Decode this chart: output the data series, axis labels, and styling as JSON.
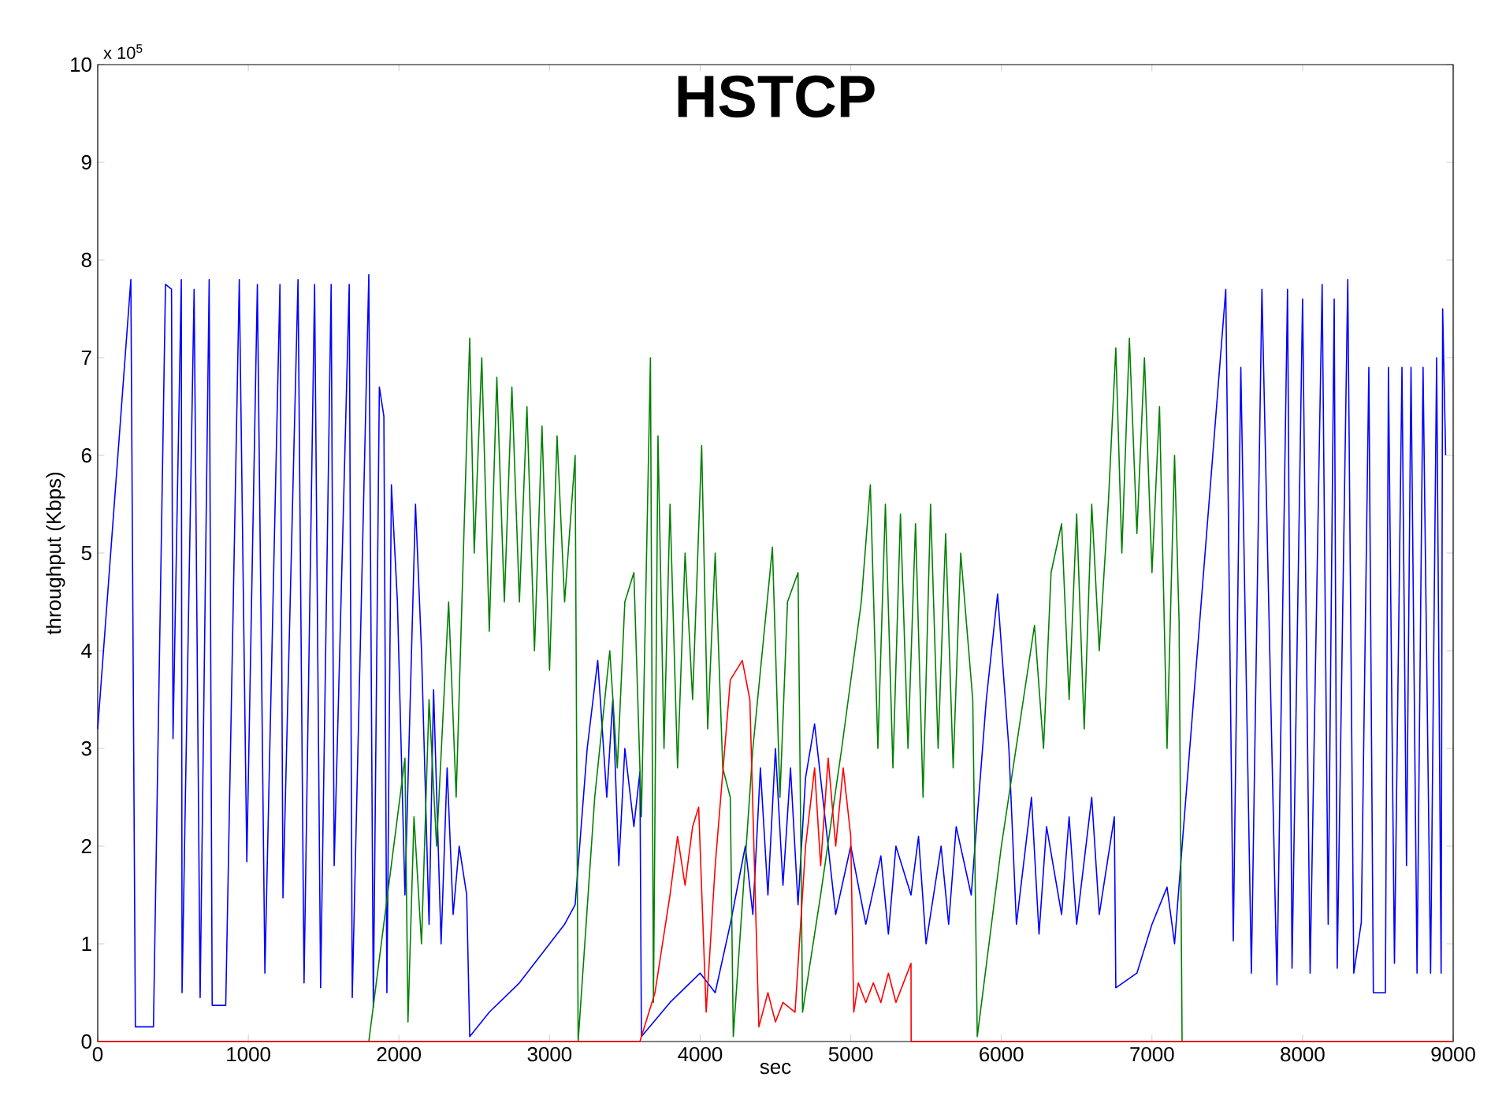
{
  "chart_data": {
    "type": "line",
    "title": "HSTCP",
    "xlabel": "sec",
    "ylabel": "throughput (Kbps)",
    "annotations": [
      "x 10$^{5}$"
    ],
    "xlim": [
      0,
      9000
    ],
    "ylim": [
      0,
      10
    ],
    "xticks": [
      0,
      1000,
      2000,
      3000,
      4000,
      5000,
      6000,
      7000,
      8000,
      9000
    ],
    "yticks": [
      0,
      1,
      2,
      3,
      4,
      5,
      6,
      7,
      8,
      9,
      10
    ],
    "grid": false,
    "series": [
      {
        "color": "#0000ff",
        "x": [
          0,
          220,
          250,
          370,
          450,
          490,
          500,
          555,
          560,
          640,
          680,
          740,
          760,
          850,
          940,
          990,
          1060,
          1110,
          1210,
          1230,
          1330,
          1370,
          1440,
          1480,
          1550,
          1570,
          1670,
          1690,
          1800,
          1830,
          1870,
          1900,
          1920,
          1950,
          1990,
          2040,
          2110,
          2150,
          2200,
          2230,
          2280,
          2320,
          2360,
          2400,
          2450,
          2470,
          2600,
          2800,
          3000,
          3100,
          3170,
          3250,
          3320,
          3380,
          3420,
          3460,
          3500,
          3560,
          3600,
          3610,
          3800,
          4000,
          4100,
          4200,
          4300,
          4350,
          4400,
          4450,
          4500,
          4550,
          4600,
          4650,
          4700,
          4760,
          4850,
          4900,
          5000,
          5100,
          5200,
          5250,
          5300,
          5400,
          5450,
          5500,
          5600,
          5650,
          5700,
          5800,
          5900,
          5975,
          6050,
          6100,
          6200,
          6250,
          6300,
          6400,
          6450,
          6500,
          6600,
          6650,
          6750,
          6760,
          6900,
          7000,
          7100,
          7150,
          7200,
          7490,
          7540,
          7590,
          7660,
          7730,
          7830,
          7900,
          7930,
          8000,
          8050,
          8130,
          8170,
          8210,
          8230,
          8300,
          8340,
          8390,
          8440,
          8470,
          8550,
          8570,
          8610,
          8660,
          8690,
          8720,
          8760,
          8800,
          8850,
          8890,
          8920,
          8930,
          8950
        ],
        "values": [
          3.2,
          7.8,
          0.15,
          0.15,
          7.75,
          7.7,
          3.1,
          7.8,
          0.5,
          7.7,
          0.45,
          7.8,
          0.37,
          0.37,
          7.8,
          1.84,
          7.75,
          0.7,
          7.75,
          1.47,
          7.8,
          0.6,
          7.75,
          0.55,
          7.75,
          1.8,
          7.75,
          0.45,
          7.85,
          0.35,
          6.7,
          6.4,
          0.5,
          5.7,
          4.5,
          1.5,
          5.5,
          4.0,
          1.2,
          3.6,
          1.0,
          2.8,
          1.3,
          2.0,
          1.5,
          0.05,
          0.3,
          0.6,
          1.0,
          1.2,
          1.4,
          3.0,
          3.9,
          2.5,
          3.5,
          1.8,
          3.0,
          2.2,
          2.76,
          0.05,
          0.4,
          0.7,
          0.5,
          1.2,
          2.0,
          1.3,
          2.8,
          1.5,
          3.0,
          1.6,
          2.8,
          1.4,
          2.7,
          3.25,
          2.0,
          1.3,
          2.0,
          1.2,
          1.9,
          1.1,
          2.0,
          1.5,
          2.1,
          1.0,
          2.0,
          1.2,
          2.2,
          1.5,
          3.5,
          4.58,
          3.0,
          1.2,
          2.5,
          1.1,
          2.2,
          1.3,
          2.3,
          1.2,
          2.5,
          1.3,
          2.3,
          0.55,
          0.7,
          1.2,
          1.58,
          1.0,
          2.0,
          7.7,
          1.03,
          6.9,
          0.7,
          7.7,
          0.58,
          7.7,
          0.75,
          7.6,
          0.7,
          7.75,
          1.2,
          7.6,
          0.75,
          7.8,
          0.7,
          1.22,
          6.9,
          0.5,
          0.5,
          6.9,
          0.8,
          6.9,
          1.8,
          6.9,
          0.7,
          6.9,
          0.7,
          7.0,
          0.7,
          7.5,
          6.0
        ]
      },
      {
        "color": "#008000",
        "x": [
          1800,
          2040,
          2060,
          2100,
          2150,
          2200,
          2250,
          2330,
          2380,
          2470,
          2500,
          2550,
          2600,
          2650,
          2700,
          2750,
          2800,
          2850,
          2900,
          2950,
          3000,
          3050,
          3100,
          3170,
          3190,
          3300,
          3400,
          3450,
          3500,
          3560,
          3610,
          3670,
          3690,
          3720,
          3760,
          3800,
          3850,
          3900,
          3950,
          4010,
          4050,
          4100,
          4150,
          4200,
          4220,
          4350,
          4480,
          4530,
          4580,
          4650,
          4680,
          4800,
          4940,
          5070,
          5130,
          5180,
          5230,
          5280,
          5330,
          5380,
          5430,
          5480,
          5530,
          5580,
          5630,
          5680,
          5730,
          5810,
          5840,
          6000,
          6220,
          6280,
          6330,
          6400,
          6450,
          6500,
          6550,
          6600,
          6650,
          6710,
          6760,
          6800,
          6850,
          6900,
          6950,
          7000,
          7050,
          7100,
          7150,
          7180,
          7200
        ],
        "values": [
          0,
          2.9,
          0.2,
          2.3,
          1.0,
          3.5,
          2.0,
          4.5,
          2.5,
          7.2,
          5.0,
          7.0,
          4.2,
          6.8,
          4.5,
          6.7,
          4.5,
          6.5,
          4.0,
          6.3,
          3.8,
          6.2,
          4.5,
          6.0,
          0,
          2.5,
          4.0,
          2.8,
          4.5,
          4.8,
          2.3,
          7.0,
          0.4,
          6.2,
          3.0,
          5.5,
          2.8,
          5.0,
          3.5,
          6.1,
          3.2,
          5.0,
          2.8,
          2.5,
          0.05,
          3.0,
          5.06,
          2.5,
          4.5,
          4.8,
          0.3,
          1.5,
          3.0,
          4.5,
          5.7,
          3.0,
          5.5,
          2.8,
          5.4,
          3.0,
          5.3,
          2.5,
          5.5,
          3.0,
          5.2,
          2.8,
          5.0,
          3.5,
          0.05,
          2.0,
          4.26,
          3.0,
          4.8,
          5.3,
          3.5,
          5.4,
          3.2,
          5.5,
          4.0,
          5.5,
          7.1,
          5.0,
          7.2,
          5.2,
          7.0,
          4.8,
          6.5,
          3.0,
          6.0,
          4.3,
          0
        ]
      },
      {
        "color": "#ff0000",
        "x": [
          0,
          3600,
          3700,
          3800,
          3850,
          3900,
          3950,
          3990,
          4040,
          4100,
          4200,
          4280,
          4330,
          4390,
          4450,
          4500,
          4550,
          4630,
          4700,
          4760,
          4800,
          4850,
          4900,
          4950,
          5000,
          5020,
          5050,
          5100,
          5150,
          5200,
          5250,
          5300,
          5350,
          5400,
          5401,
          9000
        ],
        "values": [
          0,
          0,
          0.5,
          1.5,
          2.1,
          1.6,
          2.2,
          2.4,
          0.3,
          1.8,
          3.7,
          3.9,
          3.5,
          0.15,
          0.5,
          0.2,
          0.4,
          0.3,
          2.0,
          2.8,
          1.8,
          2.9,
          2.0,
          2.8,
          2.1,
          0.3,
          0.6,
          0.4,
          0.6,
          0.4,
          0.7,
          0.4,
          0.6,
          0.8,
          0,
          0
        ]
      }
    ]
  }
}
